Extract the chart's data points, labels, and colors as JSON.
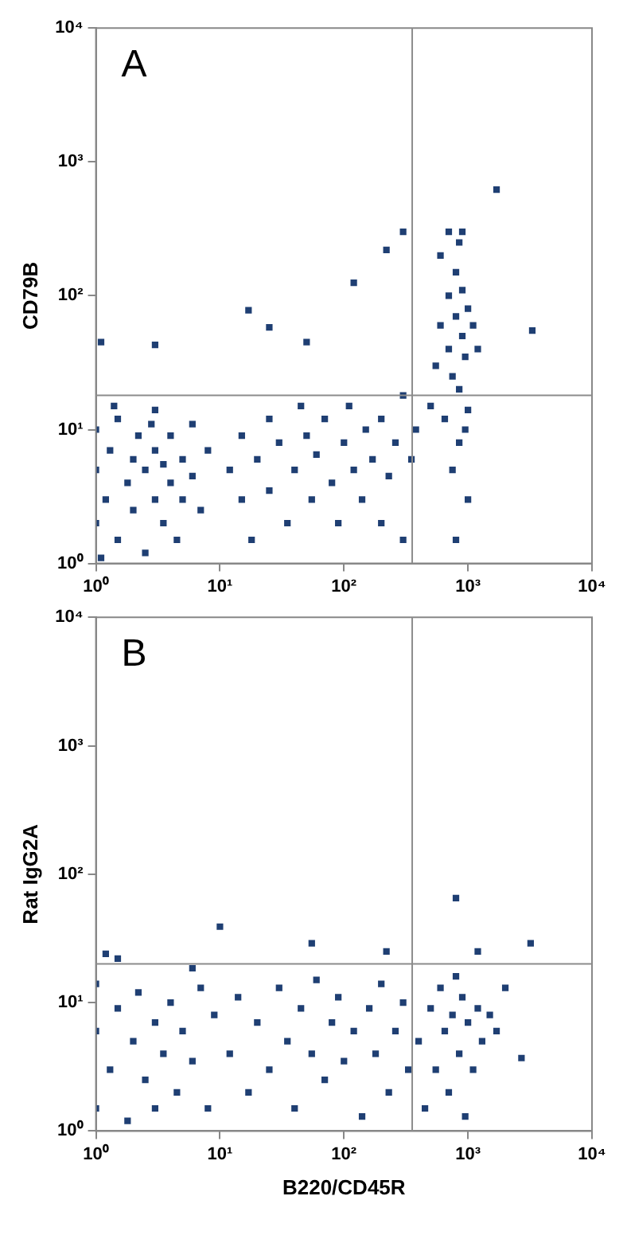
{
  "chart_data": [
    {
      "type": "scatter",
      "ylabel": "CD79B",
      "annotations": [
        "A"
      ],
      "log": "xy",
      "grid": false,
      "marker": "square",
      "legend": false,
      "xlim": [
        1,
        10000
      ],
      "ylim": [
        1,
        10000
      ],
      "xticks": [
        {
          "value": 1,
          "label": "10⁰"
        },
        {
          "value": 10,
          "label": "10¹"
        },
        {
          "value": 100,
          "label": "10²"
        },
        {
          "value": 1000,
          "label": "10³"
        },
        {
          "value": 10000,
          "label": "10⁴"
        }
      ],
      "yticks": [
        {
          "value": 1,
          "label": "10⁰"
        },
        {
          "value": 10,
          "label": "10¹"
        },
        {
          "value": 100,
          "label": "10²"
        },
        {
          "value": 1000,
          "label": "10³"
        },
        {
          "value": 10000,
          "label": "10⁴"
        }
      ],
      "ref_lines": [
        {
          "axis": "x",
          "value": 355,
          "color": "#8c8c8c"
        },
        {
          "axis": "y",
          "value": 18,
          "color": "#8c8c8c"
        }
      ],
      "series": [
        {
          "color": "#1f3f73",
          "x": [
            1,
            1,
            1,
            1.2,
            1.3,
            1.5,
            1.5,
            1.8,
            2,
            2,
            2.2,
            2.5,
            2.5,
            3,
            3,
            3,
            3.5,
            3.5,
            4,
            4,
            4.5,
            5,
            5,
            6,
            6,
            7,
            8,
            1.1,
            1.4,
            2.8,
            12,
            15,
            15,
            18,
            20,
            25,
            25,
            30,
            35,
            40,
            45,
            50,
            55,
            60,
            70,
            80,
            90,
            100,
            110,
            120,
            140,
            150,
            170,
            200,
            200,
            230,
            260,
            300,
            300,
            350,
            380,
            500,
            550,
            600,
            650,
            700,
            700,
            750,
            800,
            800,
            850,
            850,
            900,
            900,
            950,
            1000,
            1000,
            1100,
            1200,
            600,
            700,
            900,
            850,
            750,
            800,
            1000,
            950,
            1.1,
            3,
            17,
            25,
            120,
            220,
            300,
            1700,
            3300,
            50
          ],
          "values": [
            2,
            5,
            10,
            3,
            7,
            1.5,
            12,
            4,
            6,
            2.5,
            9,
            1.2,
            5,
            3,
            7,
            14,
            2,
            5.5,
            4,
            9,
            1.5,
            6,
            3,
            4.5,
            11,
            2.5,
            7,
            1.1,
            15,
            11,
            5,
            3,
            9,
            1.5,
            6,
            12,
            3.5,
            8,
            2,
            5,
            15,
            9,
            3,
            6.5,
            12,
            4,
            2,
            8,
            15,
            5,
            3,
            10,
            6,
            2,
            12,
            4.5,
            8,
            1.5,
            18,
            6,
            10,
            15,
            30,
            60,
            12,
            100,
            40,
            25,
            150,
            70,
            20,
            250,
            50,
            110,
            35,
            80,
            14,
            60,
            40,
            200,
            300,
            300,
            8,
            5,
            1.5,
            3,
            10,
            45,
            43,
            78,
            58,
            125,
            220,
            300,
            620,
            55,
            45
          ]
        }
      ]
    },
    {
      "type": "scatter",
      "ylabel": "Rat IgG2A",
      "xlabel": "B220/CD45R",
      "annotations": [
        "B"
      ],
      "log": "xy",
      "grid": false,
      "marker": "square",
      "legend": false,
      "xlim": [
        1,
        10000
      ],
      "ylim": [
        1,
        10000
      ],
      "xticks": [
        {
          "value": 1,
          "label": "10⁰"
        },
        {
          "value": 10,
          "label": "10¹"
        },
        {
          "value": 100,
          "label": "10²"
        },
        {
          "value": 1000,
          "label": "10³"
        },
        {
          "value": 10000,
          "label": "10⁴"
        }
      ],
      "yticks": [
        {
          "value": 1,
          "label": "10⁰"
        },
        {
          "value": 10,
          "label": "10¹"
        },
        {
          "value": 100,
          "label": "10²"
        },
        {
          "value": 1000,
          "label": "10³"
        },
        {
          "value": 10000,
          "label": "10⁴"
        }
      ],
      "ref_lines": [
        {
          "axis": "x",
          "value": 355,
          "color": "#8c8c8c"
        },
        {
          "axis": "y",
          "value": 20,
          "color": "#8c8c8c"
        }
      ],
      "series": [
        {
          "color": "#1f3f73",
          "x": [
            1,
            1,
            1,
            1.3,
            1.5,
            1.8,
            2,
            2.2,
            2.5,
            3,
            3,
            3.5,
            4,
            4.5,
            5,
            6,
            7,
            8,
            9,
            12,
            14,
            17,
            20,
            25,
            30,
            35,
            40,
            45,
            55,
            60,
            70,
            80,
            90,
            100,
            120,
            140,
            160,
            180,
            200,
            230,
            260,
            300,
            330,
            400,
            450,
            500,
            550,
            600,
            650,
            700,
            750,
            800,
            850,
            900,
            950,
            1000,
            1100,
            1200,
            1300,
            1500,
            1700,
            1.2,
            1.5,
            10,
            55,
            220,
            800,
            1200,
            2000,
            2700,
            3200,
            6
          ],
          "values": [
            1.5,
            6,
            14,
            3,
            9,
            1.2,
            5,
            12,
            2.5,
            7,
            1.5,
            4,
            10,
            2,
            6,
            3.5,
            13,
            1.5,
            8,
            4,
            11,
            2,
            7,
            3,
            13,
            5,
            1.5,
            9,
            4,
            15,
            2.5,
            7,
            11,
            3.5,
            6,
            1.3,
            9,
            4,
            14,
            2,
            6,
            10,
            3,
            5,
            1.5,
            9,
            3,
            13,
            6,
            2,
            8,
            16,
            4,
            11,
            1.3,
            7,
            3,
            9,
            5,
            8,
            6,
            24,
            22,
            39,
            29,
            25,
            65,
            25,
            13,
            3.7,
            29,
            18.5
          ]
        }
      ]
    }
  ]
}
